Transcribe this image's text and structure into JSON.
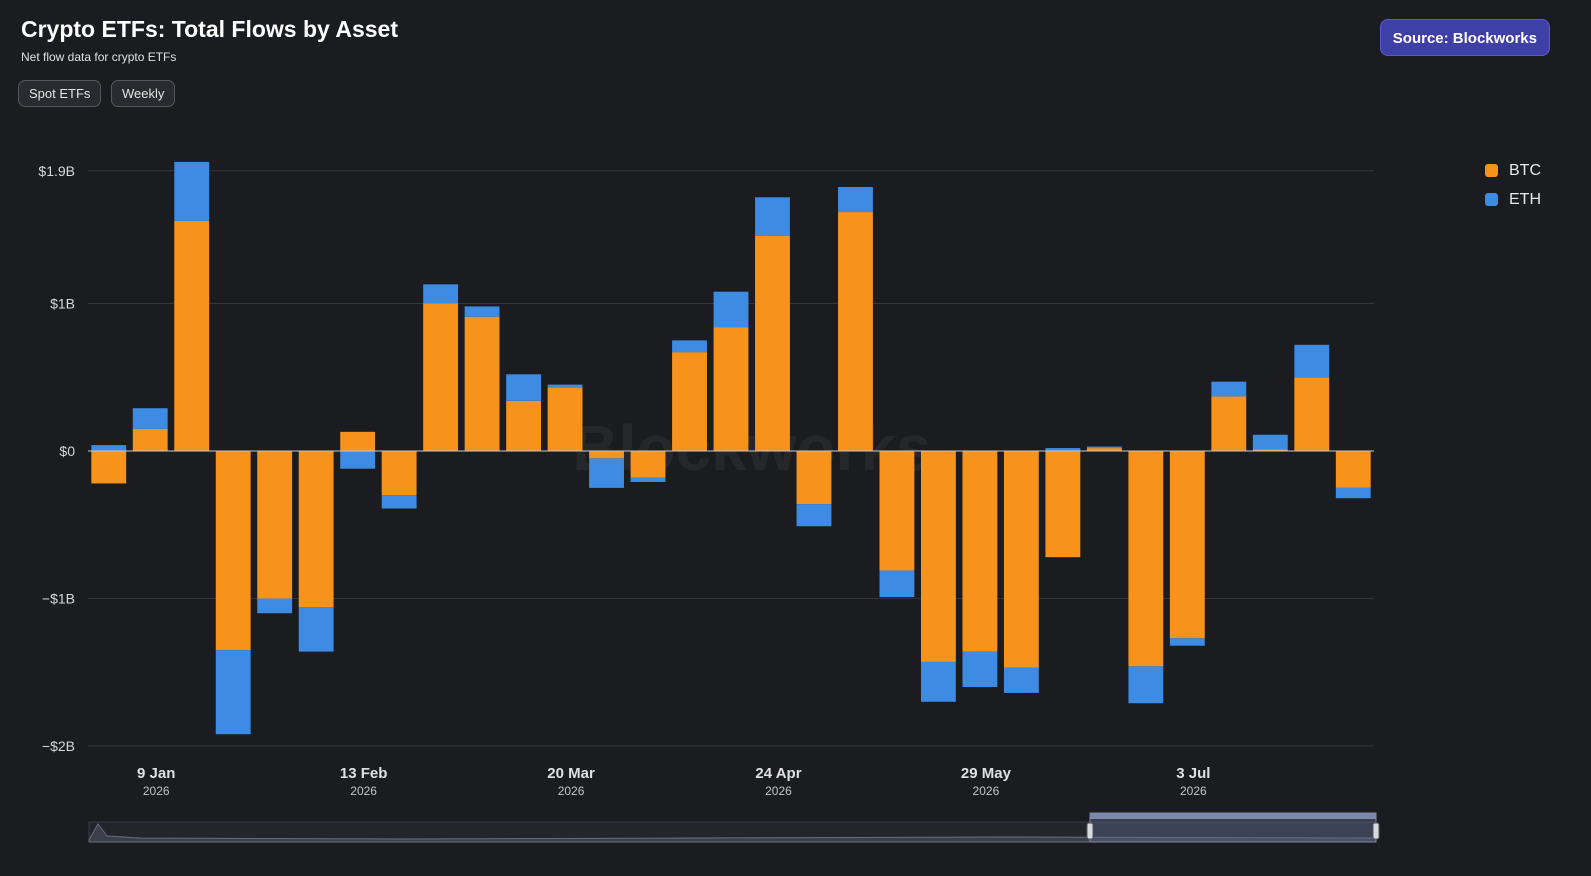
{
  "header": {
    "title": "Crypto ETFs: Total Flows by Asset",
    "subtitle": "Net flow data for crypto ETFs",
    "filters": [
      "Spot ETFs",
      "Weekly"
    ],
    "source_label": "Source: Blockworks"
  },
  "watermark": "Blockworks",
  "colors": {
    "btc": "#f7931a",
    "eth": "#3d8be3",
    "background": "#1b1c20"
  },
  "chart_data": {
    "type": "bar",
    "stacked": true,
    "ylim": [
      -2.0,
      1.95
    ],
    "yticks": [
      {
        "value": 1.9,
        "label": "$1.9B"
      },
      {
        "value": 1,
        "label": "$1B"
      },
      {
        "value": 0,
        "label": "$0"
      },
      {
        "value": -1,
        "label": "−$1B"
      },
      {
        "value": -2,
        "label": "−$2B"
      }
    ],
    "x_ticks": [
      {
        "index": 1,
        "label": "9 Jan",
        "year": "2026"
      },
      {
        "index": 6,
        "label": "13 Feb",
        "year": "2026"
      },
      {
        "index": 11,
        "label": "20 Mar",
        "year": "2026"
      },
      {
        "index": 16,
        "label": "24 Apr",
        "year": "2026"
      },
      {
        "index": 21,
        "label": "29 May",
        "year": "2026"
      },
      {
        "index": 26,
        "label": "3 Jul",
        "year": "2026"
      }
    ],
    "legend": {
      "position": "top-right"
    },
    "series": [
      {
        "name": "BTC",
        "color": "#f7931a",
        "values": [
          -0.22,
          0.15,
          1.56,
          -1.35,
          -1.0,
          -1.06,
          0.13,
          -0.3,
          1.0,
          0.91,
          0.34,
          0.43,
          -0.05,
          -0.18,
          0.67,
          0.84,
          1.46,
          -0.36,
          1.62,
          -0.81,
          -1.43,
          -1.36,
          -1.47,
          -0.72,
          0.02,
          -1.46,
          -1.27,
          0.37,
          0.01,
          0.5,
          -0.25
        ]
      },
      {
        "name": "ETH",
        "color": "#3d8be3",
        "values": [
          0.04,
          0.14,
          0.4,
          -0.57,
          -0.1,
          -0.3,
          -0.12,
          -0.09,
          0.13,
          0.07,
          0.18,
          0.02,
          -0.2,
          -0.03,
          0.08,
          0.24,
          0.26,
          -0.15,
          0.17,
          -0.18,
          -0.27,
          -0.24,
          -0.17,
          0.02,
          0.01,
          -0.25,
          -0.05,
          0.1,
          0.1,
          0.22,
          -0.07
        ]
      }
    ]
  }
}
